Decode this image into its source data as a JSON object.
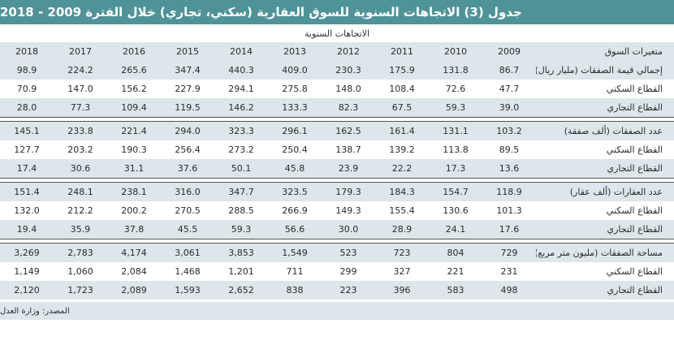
{
  "title": "جدول (3) الاتجاهات السنوية للسوق العقارية (سكني، تجاري) خلال الفترة 2009 - 2018",
  "super_header": "الاتجاهات السنوية",
  "header": {
    "label": "متغيرات السوق",
    "years": [
      "2018",
      "2017",
      "2016",
      "2015",
      "2014",
      "2013",
      "2012",
      "2011",
      "2010",
      "2009"
    ]
  },
  "groups": [
    {
      "rows": [
        {
          "label": "إجمالي قيمة الصفقات (مليار ريال)",
          "values": [
            "98.9",
            "224.2",
            "265.6",
            "347.4",
            "440.3",
            "409.0",
            "230.3",
            "175.9",
            "131.8",
            "86.7"
          ]
        },
        {
          "label": "القطاع السكني",
          "values": [
            "70.9",
            "147.0",
            "156.2",
            "227.9",
            "294.1",
            "275.8",
            "148.0",
            "108.4",
            "72.6",
            "47.7"
          ]
        },
        {
          "label": "القطاع التجاري",
          "values": [
            "28.0",
            "77.3",
            "109.4",
            "119.5",
            "146.2",
            "133.3",
            "82.3",
            "67.5",
            "59.3",
            "39.0"
          ]
        }
      ]
    },
    {
      "rows": [
        {
          "label": "عدد الصفقات (ألف صفقة)",
          "values": [
            "145.1",
            "233.8",
            "221.4",
            "294.0",
            "323.3",
            "296.1",
            "162.5",
            "161.4",
            "131.1",
            "103.2"
          ]
        },
        {
          "label": "القطاع السكني",
          "values": [
            "127.7",
            "203.2",
            "190.3",
            "256.4",
            "273.2",
            "250.4",
            "138.7",
            "139.2",
            "113.8",
            "89.5"
          ]
        },
        {
          "label": "القطاع التجاري",
          "values": [
            "17.4",
            "30.6",
            "31.1",
            "37.6",
            "50.1",
            "45.8",
            "23.9",
            "22.2",
            "17.3",
            "13.6"
          ]
        }
      ]
    },
    {
      "rows": [
        {
          "label": "عدد العقارات (ألف عقار)",
          "values": [
            "151.4",
            "248.1",
            "238.1",
            "316.0",
            "347.7",
            "323.5",
            "179.3",
            "184.3",
            "154.7",
            "118.9"
          ]
        },
        {
          "label": "القطاع السكني",
          "values": [
            "132.0",
            "212.2",
            "200.2",
            "270.5",
            "288.5",
            "266.9",
            "149.3",
            "155.4",
            "130.6",
            "101.3"
          ]
        },
        {
          "label": "القطاع التجاري",
          "values": [
            "19.4",
            "35.9",
            "37.8",
            "45.5",
            "59.3",
            "56.6",
            "30.0",
            "28.9",
            "24.1",
            "17.6"
          ]
        }
      ]
    },
    {
      "rows": [
        {
          "label": "مساحة الصفقات (مليون متر مربع)",
          "values": [
            "3,269",
            "2,783",
            "4,174",
            "3,061",
            "3,853",
            "1,549",
            "523",
            "723",
            "804",
            "729"
          ]
        },
        {
          "label": "القطاع السكني",
          "values": [
            "1,149",
            "1,060",
            "2,084",
            "1,468",
            "1,201",
            "711",
            "299",
            "327",
            "221",
            "231"
          ]
        },
        {
          "label": "القطاع التجاري",
          "values": [
            "2,120",
            "1,723",
            "2,089",
            "1,593",
            "2,652",
            "838",
            "223",
            "396",
            "583",
            "498"
          ]
        }
      ]
    }
  ],
  "source": "المصدر: وزارة العدل",
  "colors": {
    "title_bg": "#4f9398",
    "row_shade": "#dde6ea",
    "rule": "#555555"
  }
}
